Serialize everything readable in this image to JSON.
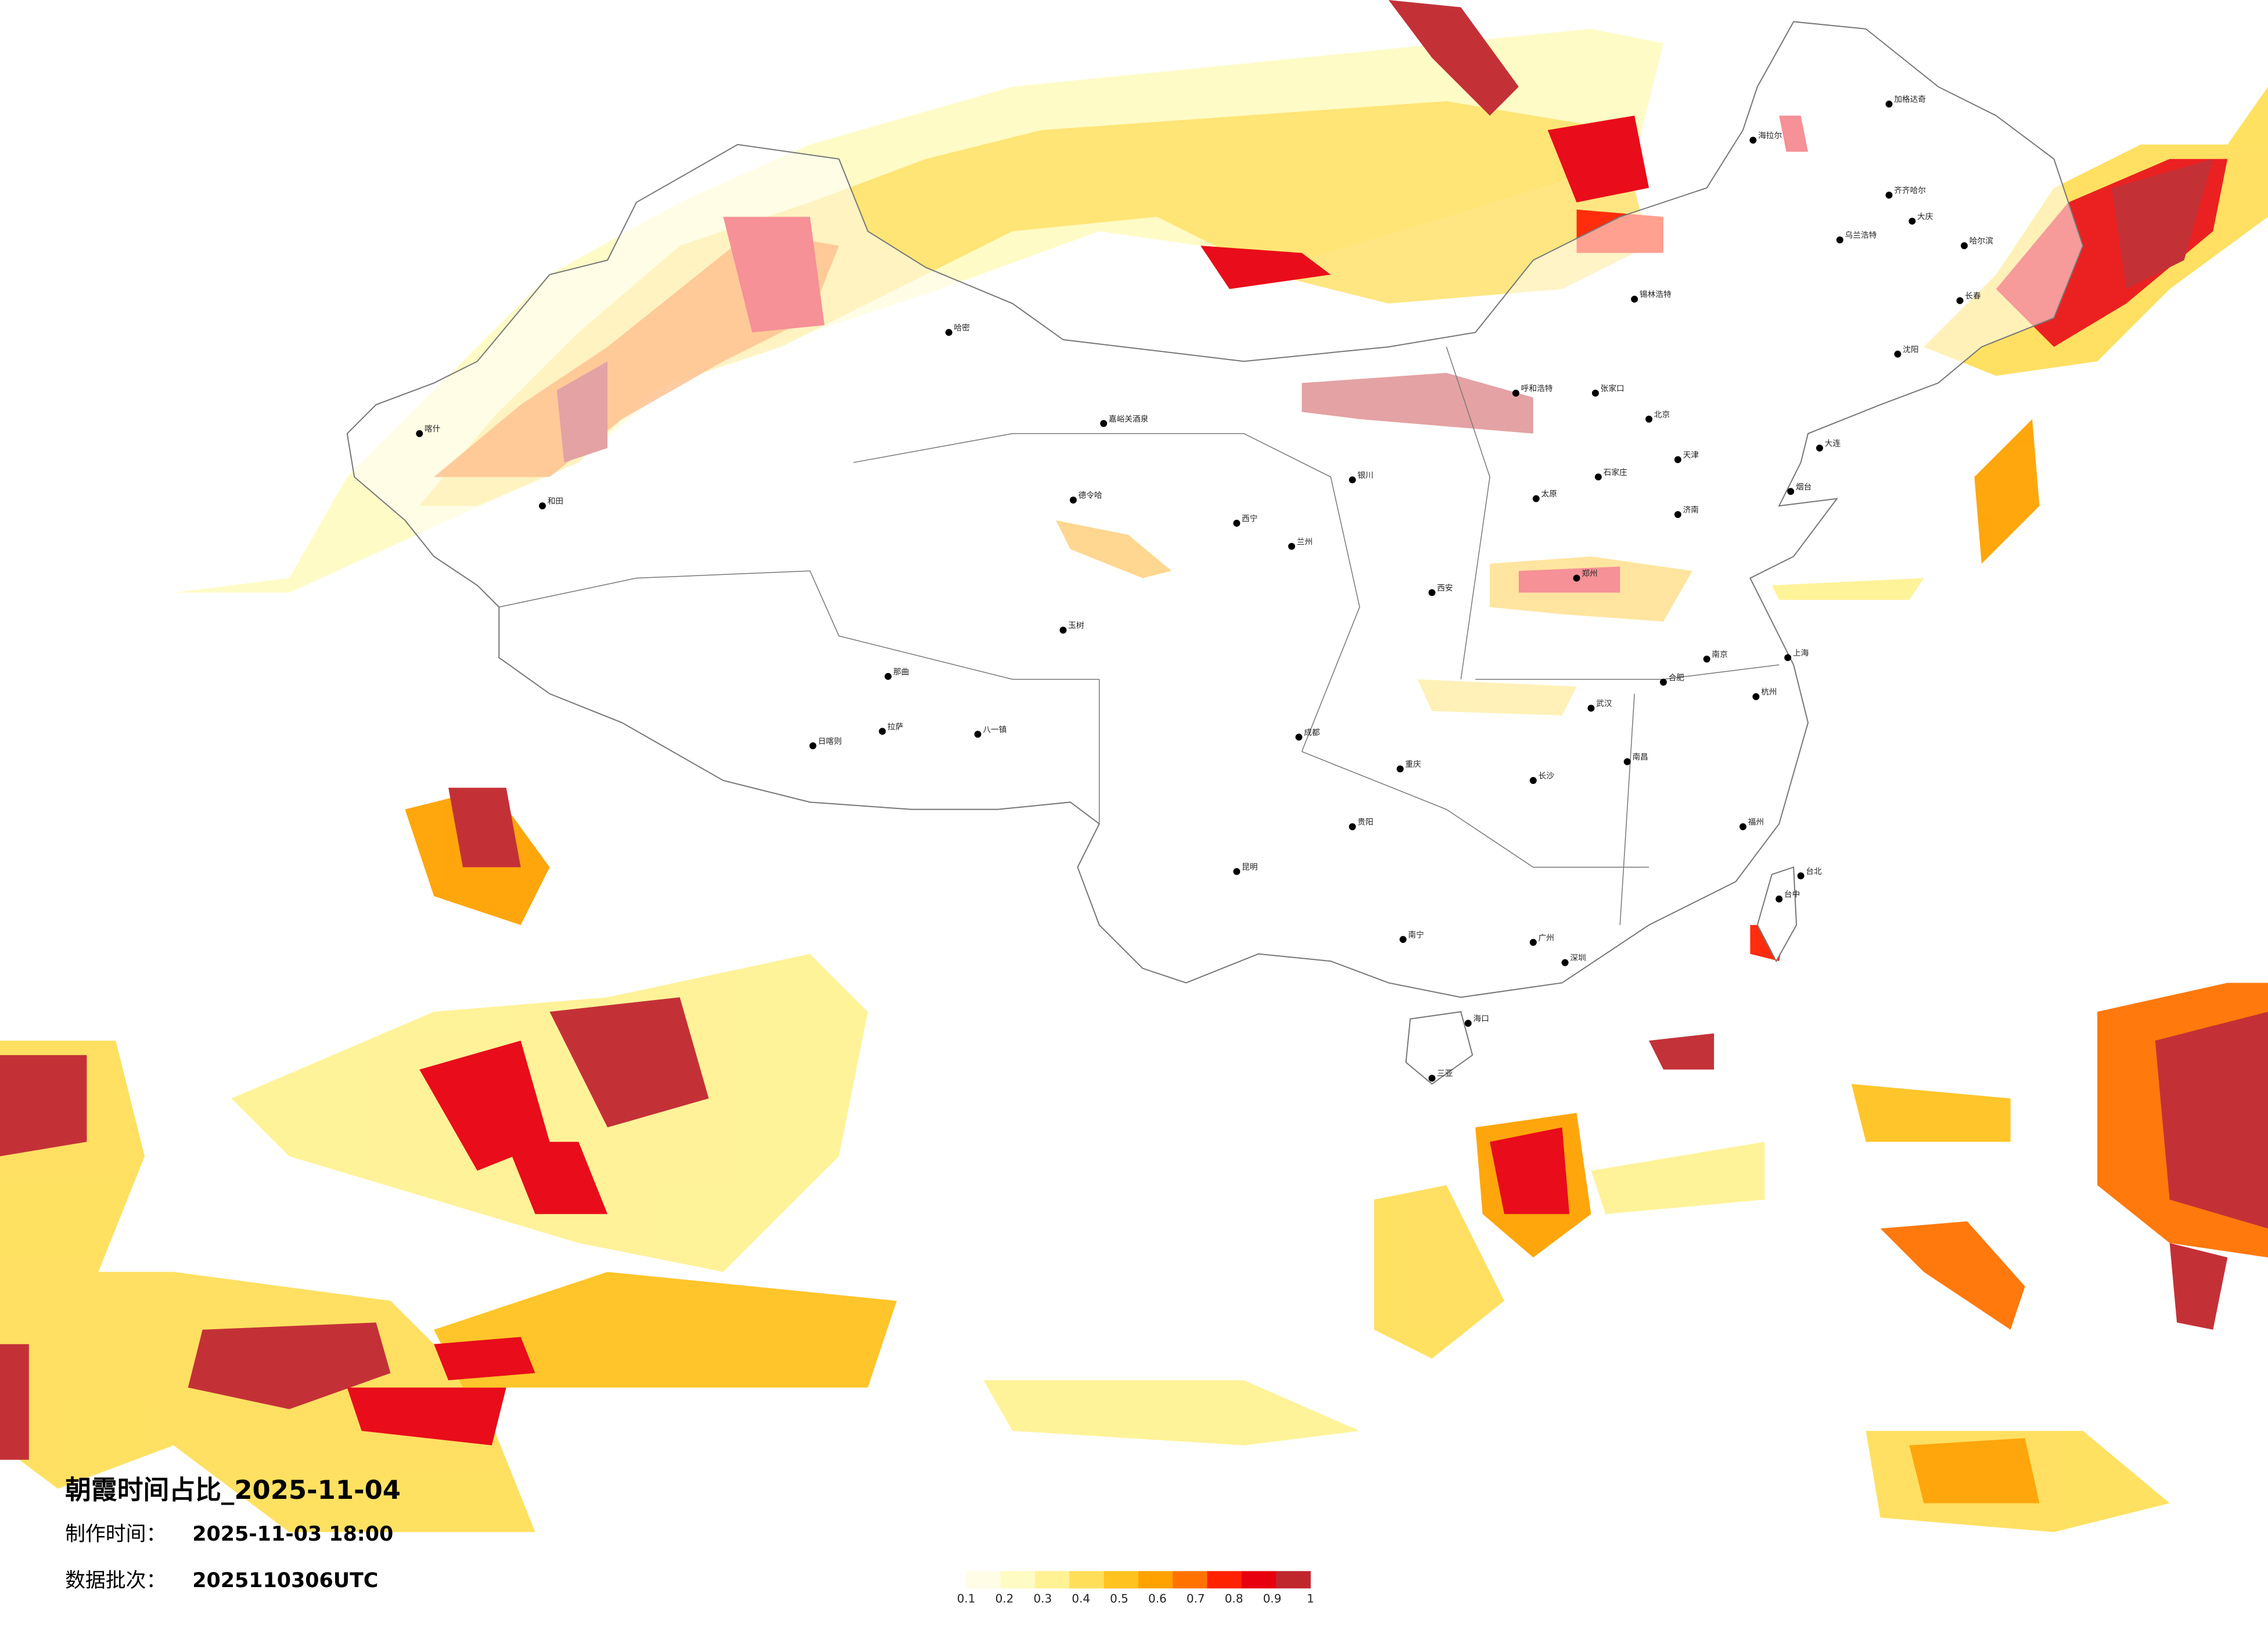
{
  "title": "朝霞时间占比_2025-11-04",
  "made_label": "制作时间：",
  "made_time": "2025-11-03 18:00",
  "batch_label": "数据批次：",
  "batch": "2025110306UTC",
  "legend": {
    "ticks": [
      0.1,
      0.2,
      0.3,
      0.4,
      0.5,
      0.6,
      0.7,
      0.8,
      0.9,
      1
    ],
    "colors": [
      "#fffde6",
      "#fffbc4",
      "#fff294",
      "#ffdf5a",
      "#ffc21f",
      "#ffa200",
      "#ff7200",
      "#ff2200",
      "#e8000e",
      "#c0272d"
    ]
  },
  "cities": [
    "北京",
    "天津",
    "石家庄",
    "太原",
    "呼和浩特",
    "济南",
    "郑州",
    "西安",
    "兰州",
    "西宁",
    "银川",
    "拉萨",
    "日喀则",
    "喀什",
    "和田",
    "哈密",
    "德令哈",
    "嘉峪关酒泉",
    "乌兰浩特",
    "齐齐哈尔",
    "哈尔滨",
    "长春",
    "沈阳",
    "大连",
    "烟台",
    "成都",
    "重庆",
    "贵阳",
    "昆明",
    "南宁",
    "广州",
    "深圳",
    "海口",
    "三亚",
    "长沙",
    "武汉",
    "南昌",
    "福州",
    "台北",
    "杭州",
    "上海",
    "南京",
    "合肥",
    "海拉尔",
    "大庆",
    "加格达奇",
    "锡林浩特",
    "张家口",
    "八一镇",
    "那曲",
    "玉树",
    "台中"
  ]
}
